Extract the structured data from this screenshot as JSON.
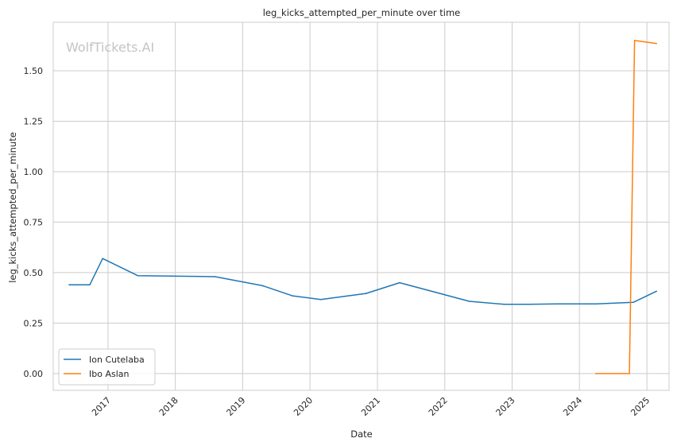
{
  "chart_data": {
    "type": "line",
    "title": "leg_kicks_attempted_per_minute over time",
    "xlabel": "Date",
    "ylabel": "leg_kicks_attempted_per_minute",
    "watermark": "WolfTickets.AI",
    "xlim": [
      "2016-03-10",
      "2025-05-01"
    ],
    "ylim": [
      -0.083,
      1.74
    ],
    "x_ticks": [
      "2017",
      "2018",
      "2019",
      "2020",
      "2021",
      "2022",
      "2023",
      "2024",
      "2025"
    ],
    "y_ticks": [
      "0.00",
      "0.25",
      "0.50",
      "0.75",
      "1.00",
      "1.25",
      "1.50"
    ],
    "grid": true,
    "legend_position": "lower-left",
    "series": [
      {
        "name": "Ion Cutelaba",
        "color": "#1f77b4",
        "points": [
          {
            "x": "2016-06-04",
            "y": 0.44
          },
          {
            "x": "2016-09-24",
            "y": 0.44
          },
          {
            "x": "2016-12-03",
            "y": 0.57
          },
          {
            "x": "2017-06-11",
            "y": 0.485
          },
          {
            "x": "2018-08-04",
            "y": 0.48
          },
          {
            "x": "2019-04-20",
            "y": 0.435
          },
          {
            "x": "2019-09-28",
            "y": 0.385
          },
          {
            "x": "2020-02-29",
            "y": 0.367
          },
          {
            "x": "2020-10-31",
            "y": 0.397
          },
          {
            "x": "2021-05-01",
            "y": 0.45
          },
          {
            "x": "2022-05-14",
            "y": 0.358
          },
          {
            "x": "2022-11-19",
            "y": 0.343
          },
          {
            "x": "2023-04-01",
            "y": 0.343
          },
          {
            "x": "2023-09-01",
            "y": 0.345
          },
          {
            "x": "2024-03-30",
            "y": 0.345
          },
          {
            "x": "2024-10-19",
            "y": 0.353
          },
          {
            "x": "2025-02-22",
            "y": 0.408
          }
        ]
      },
      {
        "name": "Ibo Aslan",
        "color": "#ff7f0e",
        "points": [
          {
            "x": "2024-03-30",
            "y": 0.0
          },
          {
            "x": "2024-09-28",
            "y": 0.0
          },
          {
            "x": "2024-10-26",
            "y": 1.65
          },
          {
            "x": "2025-02-22",
            "y": 1.635
          }
        ]
      }
    ]
  }
}
